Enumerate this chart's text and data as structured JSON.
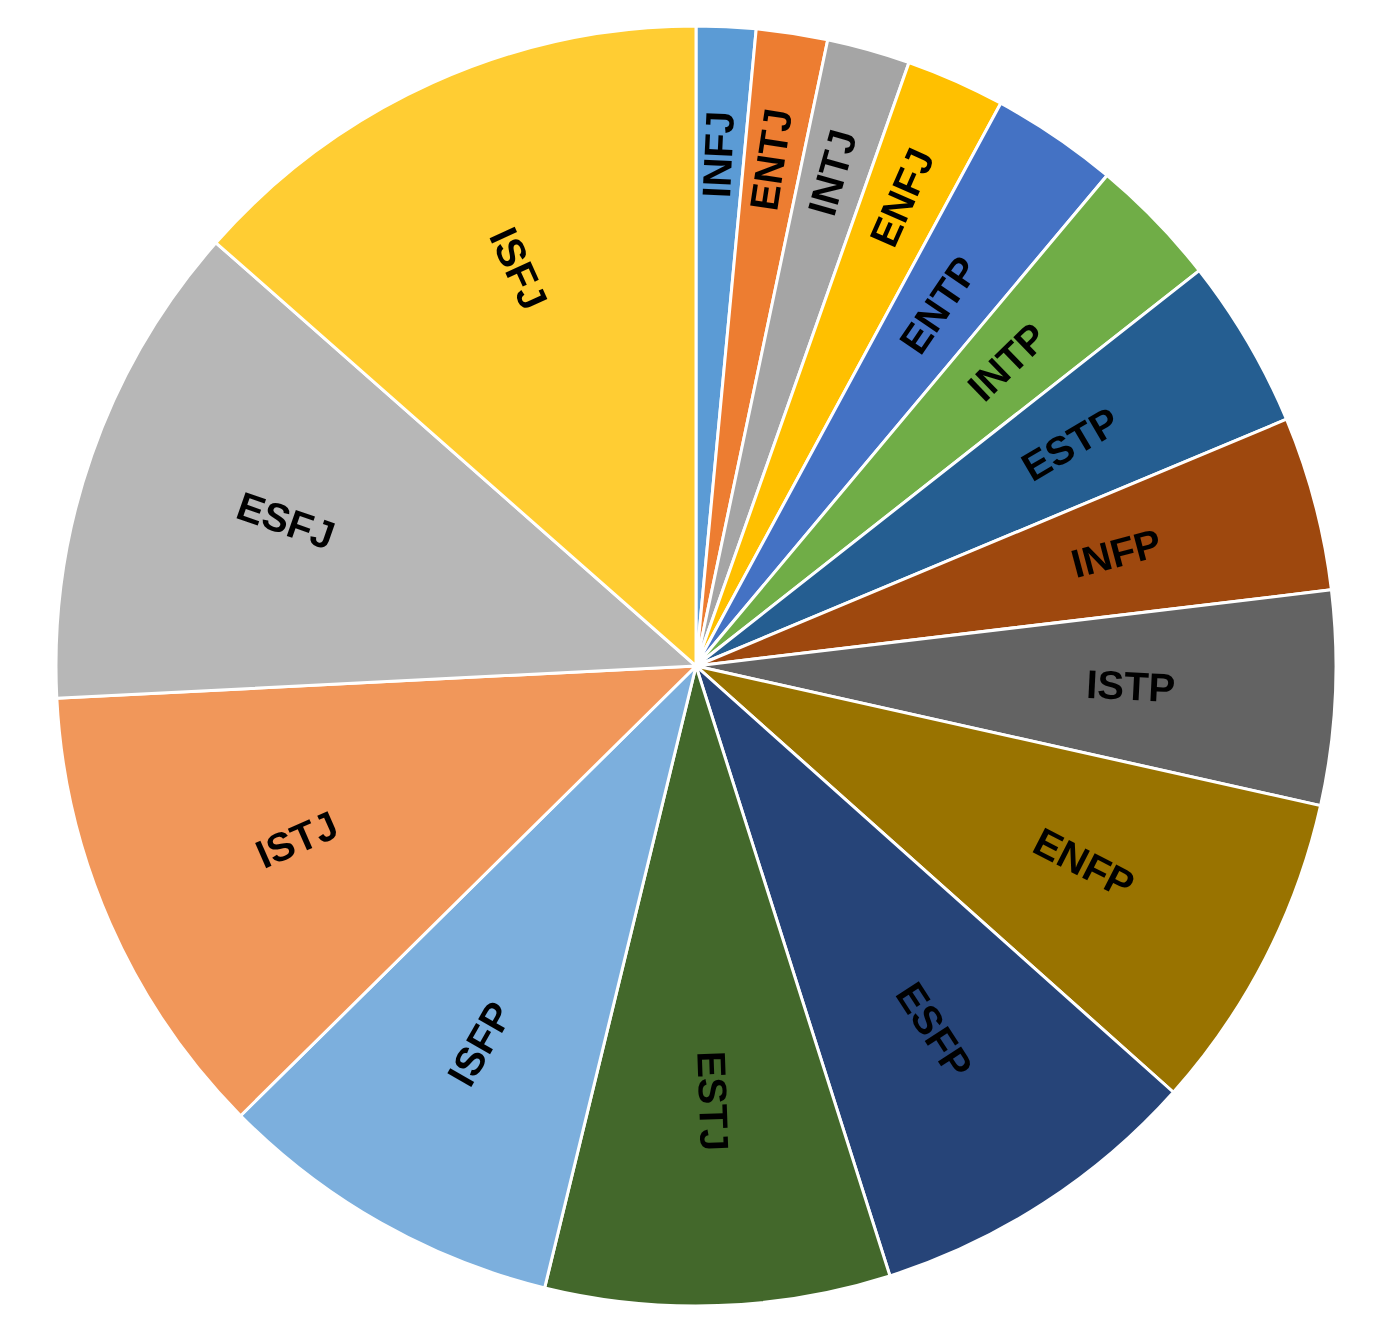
{
  "chart_data": {
    "type": "pie",
    "categories": [
      "INFJ",
      "ENTJ",
      "INTJ",
      "ENFJ",
      "ENTP",
      "INTP",
      "ESTP",
      "INFP",
      "ISTP",
      "ENFP",
      "ESFP",
      "ESTJ",
      "ISFP",
      "ISTJ",
      "ESFJ",
      "ISFJ"
    ],
    "values": [
      1.5,
      1.8,
      2.1,
      2.5,
      3.2,
      3.3,
      4.3,
      4.4,
      5.4,
      8.1,
      8.5,
      8.7,
      8.8,
      11.6,
      12.3,
      13.5
    ],
    "colors": [
      "#5b9bd5",
      "#ed7d31",
      "#a5a5a5",
      "#ffc000",
      "#4472c4",
      "#70ad47",
      "#255e91",
      "#9e480e",
      "#636363",
      "#997300",
      "#264478",
      "#43682b",
      "#7cafdd",
      "#f1975a",
      "#b7b7b7",
      "#ffcd33"
    ]
  }
}
